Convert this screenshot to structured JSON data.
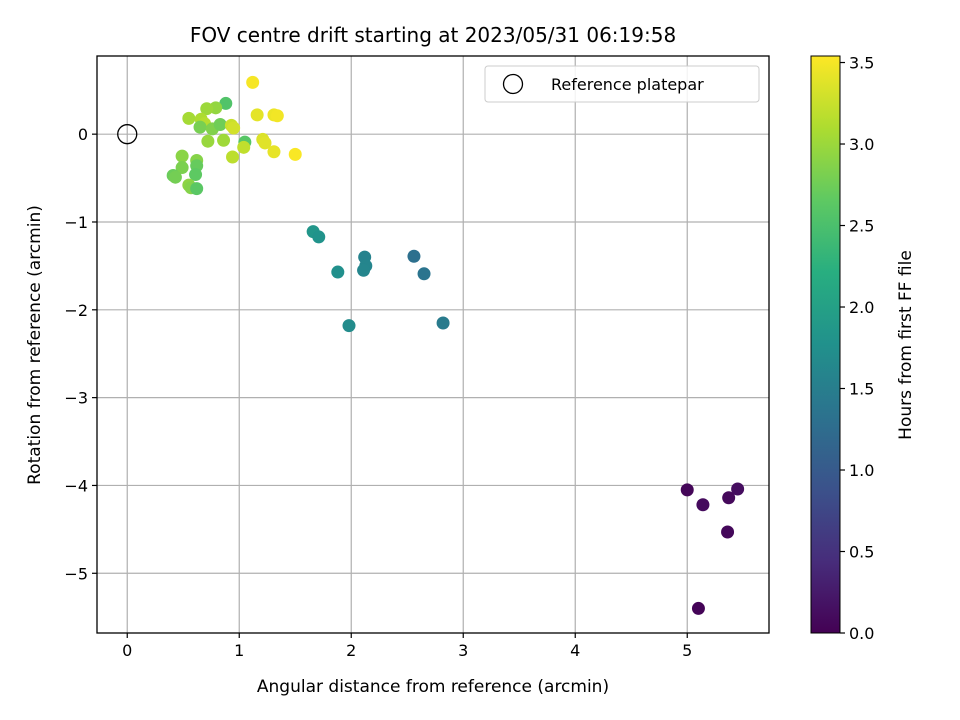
{
  "chart_data": {
    "type": "scatter",
    "title": "FOV centre drift starting at 2023/05/31 06:19:58",
    "xlabel": "Angular distance from reference (arcmin)",
    "ylabel": "Rotation from reference (arcmin)",
    "xlim": [
      -0.27,
      5.73
    ],
    "ylim": [
      -5.68,
      0.89
    ],
    "xticks": [
      0,
      1,
      2,
      3,
      4,
      5
    ],
    "yticks": [
      0,
      -1,
      -2,
      -3,
      -4,
      -5
    ],
    "xtick_labels": [
      "0",
      "1",
      "2",
      "3",
      "4",
      "5"
    ],
    "ytick_labels": [
      "0",
      "−1",
      "−2",
      "−3",
      "−4",
      "−5"
    ],
    "grid": true,
    "legend": {
      "position": "top-right",
      "entries": [
        "Reference platepar"
      ]
    },
    "reference_point": {
      "x": 0,
      "y": 0,
      "label": "Reference platepar"
    },
    "colorbar": {
      "label": "Hours from first FF file",
      "colormap": "viridis",
      "range": [
        0.0,
        3.54
      ],
      "ticks": [
        0.0,
        0.5,
        1.0,
        1.5,
        2.0,
        2.5,
        3.0,
        3.5
      ],
      "tick_labels": [
        "0.0",
        "0.5",
        "1.0",
        "1.5",
        "2.0",
        "2.5",
        "3.0",
        "3.5"
      ]
    },
    "points": [
      {
        "x": 5.0,
        "y": -4.05,
        "hours": 0.05
      },
      {
        "x": 5.14,
        "y": -4.22,
        "hours": 0.1
      },
      {
        "x": 5.37,
        "y": -4.14,
        "hours": 0.08
      },
      {
        "x": 5.45,
        "y": -4.04,
        "hours": 0.12
      },
      {
        "x": 5.36,
        "y": -4.53,
        "hours": 0.07
      },
      {
        "x": 5.1,
        "y": -5.4,
        "hours": 0.03
      },
      {
        "x": 2.56,
        "y": -1.39,
        "hours": 1.3
      },
      {
        "x": 2.65,
        "y": -1.59,
        "hours": 1.35
      },
      {
        "x": 2.82,
        "y": -2.15,
        "hours": 1.45
      },
      {
        "x": 2.12,
        "y": -1.4,
        "hours": 1.55
      },
      {
        "x": 2.13,
        "y": -1.5,
        "hours": 1.6
      },
      {
        "x": 2.11,
        "y": -1.55,
        "hours": 1.62
      },
      {
        "x": 1.88,
        "y": -1.57,
        "hours": 1.75
      },
      {
        "x": 1.98,
        "y": -2.18,
        "hours": 1.7
      },
      {
        "x": 1.66,
        "y": -1.11,
        "hours": 1.85
      },
      {
        "x": 1.71,
        "y": -1.17,
        "hours": 1.8
      },
      {
        "x": 1.12,
        "y": 0.59,
        "hours": 3.5
      },
      {
        "x": 1.16,
        "y": 0.22,
        "hours": 3.4
      },
      {
        "x": 1.31,
        "y": 0.22,
        "hours": 3.45
      },
      {
        "x": 1.34,
        "y": 0.21,
        "hours": 3.48
      },
      {
        "x": 1.21,
        "y": -0.06,
        "hours": 3.35
      },
      {
        "x": 1.23,
        "y": -0.1,
        "hours": 3.38
      },
      {
        "x": 1.31,
        "y": -0.2,
        "hours": 3.42
      },
      {
        "x": 1.5,
        "y": -0.23,
        "hours": 3.52
      },
      {
        "x": 0.88,
        "y": 0.35,
        "hours": 2.55
      },
      {
        "x": 0.79,
        "y": 0.3,
        "hours": 2.95
      },
      {
        "x": 0.71,
        "y": 0.29,
        "hours": 3.0
      },
      {
        "x": 0.55,
        "y": 0.18,
        "hours": 3.05
      },
      {
        "x": 0.66,
        "y": 0.17,
        "hours": 3.1
      },
      {
        "x": 0.69,
        "y": 0.12,
        "hours": 3.15
      },
      {
        "x": 0.65,
        "y": 0.08,
        "hours": 2.8
      },
      {
        "x": 0.76,
        "y": 0.06,
        "hours": 2.85
      },
      {
        "x": 0.83,
        "y": 0.11,
        "hours": 2.75
      },
      {
        "x": 0.93,
        "y": 0.1,
        "hours": 3.25
      },
      {
        "x": 0.95,
        "y": 0.07,
        "hours": 3.3
      },
      {
        "x": 1.05,
        "y": -0.09,
        "hours": 2.6
      },
      {
        "x": 1.04,
        "y": -0.15,
        "hours": 3.2
      },
      {
        "x": 0.94,
        "y": -0.26,
        "hours": 3.18
      },
      {
        "x": 0.72,
        "y": -0.08,
        "hours": 2.98
      },
      {
        "x": 0.86,
        "y": -0.07,
        "hours": 3.02
      },
      {
        "x": 0.49,
        "y": -0.25,
        "hours": 2.9
      },
      {
        "x": 0.62,
        "y": -0.3,
        "hours": 2.88
      },
      {
        "x": 0.62,
        "y": -0.36,
        "hours": 2.7
      },
      {
        "x": 0.49,
        "y": -0.38,
        "hours": 2.82
      },
      {
        "x": 0.41,
        "y": -0.47,
        "hours": 2.72
      },
      {
        "x": 0.43,
        "y": -0.49,
        "hours": 2.78
      },
      {
        "x": 0.61,
        "y": -0.46,
        "hours": 2.65
      },
      {
        "x": 0.55,
        "y": -0.58,
        "hours": 2.92
      },
      {
        "x": 0.57,
        "y": -0.61,
        "hours": 2.87
      },
      {
        "x": 0.62,
        "y": -0.62,
        "hours": 2.62
      }
    ]
  }
}
